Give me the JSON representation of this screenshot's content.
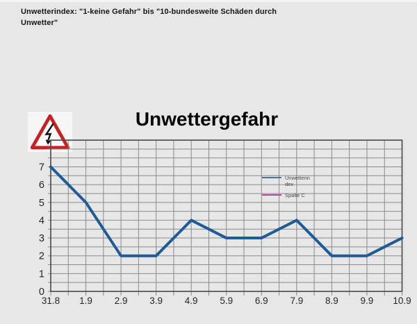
{
  "page": {
    "header_note_line1": "Unwetterindex: \"1-keine Gefahr\" bis \"10-bundesweite Schäden durch",
    "header_note_line2": "Unwetter\""
  },
  "colors": {
    "background": "#e7e7e7",
    "grid": "#8a8a8a",
    "plot_border": "#4f4f4f",
    "axis_label": "#262626",
    "series_blue": "#1e5c99",
    "legend_blue": "#4472a8",
    "legend_pink": "#b94b8c",
    "warning_red": "#c92121"
  },
  "chart_data": {
    "type": "line",
    "title": "Unwettergefahr",
    "categories": [
      "31.8",
      "1.9",
      "2.9",
      "3.9",
      "4.9",
      "5.9",
      "6.9",
      "7.9",
      "8.9",
      "9.9",
      "10.9"
    ],
    "series": [
      {
        "name": "Unwetterindex",
        "color": "#1e5c99",
        "values": [
          7,
          5,
          2,
          2,
          4,
          3,
          3,
          4,
          2,
          2,
          3
        ]
      },
      {
        "name": "Spalte C",
        "color": "#b94b8c",
        "values": []
      }
    ],
    "xlabel": "",
    "ylabel": "",
    "yticks": [
      0,
      1,
      2,
      3,
      4,
      5,
      6,
      7
    ],
    "ylim": [
      0,
      8.5
    ],
    "grid": {
      "visible": true,
      "minor_step_x": 0.5,
      "minor_step_y": 0.5
    },
    "legend": {
      "position": "inside-center-right",
      "entries": [
        {
          "series": "Unwetterindex",
          "lines": [
            "Unwetterin",
            "dex"
          ],
          "color": "#4472a8"
        },
        {
          "series": "Spalte C",
          "lines": [
            "Spalte C"
          ],
          "color": "#b94b8c"
        }
      ]
    },
    "annotation_icon": "lightning-warning-triangle"
  }
}
